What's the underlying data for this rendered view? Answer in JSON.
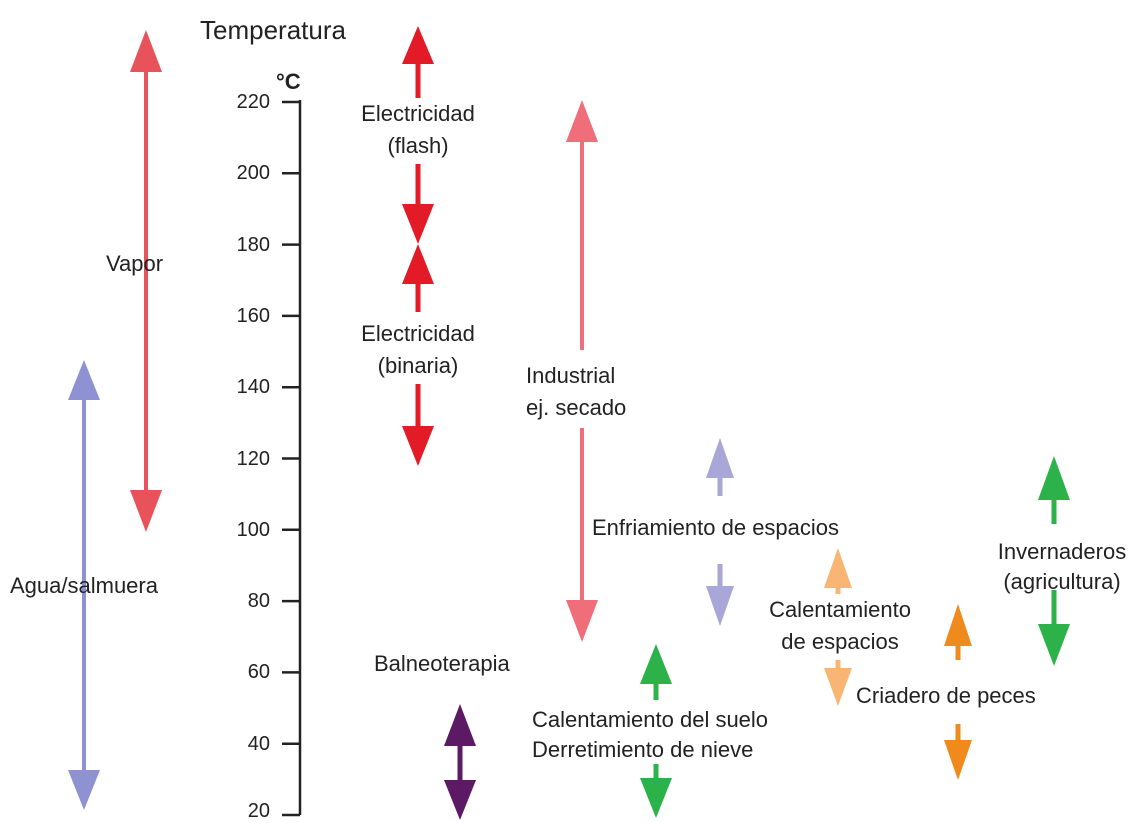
{
  "axis": {
    "title": "Temperatura",
    "unit": "°C",
    "range": [
      20,
      220
    ],
    "ticks": [
      {
        "value": 220,
        "label": "220"
      },
      {
        "value": 200,
        "label": "200"
      },
      {
        "value": 180,
        "label": "180"
      },
      {
        "value": 160,
        "label": "160"
      },
      {
        "value": 140,
        "label": "140"
      },
      {
        "value": 120,
        "label": "120"
      },
      {
        "value": 100,
        "label": "100"
      },
      {
        "value": 80,
        "label": "80"
      },
      {
        "value": 60,
        "label": "60"
      },
      {
        "value": 40,
        "label": "40"
      },
      {
        "value": 20,
        "label": "20"
      }
    ]
  },
  "resource_ranges": [
    {
      "name": "vapor-arrow",
      "min": 100,
      "max": 230,
      "color": "#e8525a"
    },
    {
      "name": "water-brine-arrow",
      "min": 20,
      "max": 140,
      "color": "#8f92d2"
    }
  ],
  "applications": [
    {
      "name": "electricity-flash-arrow",
      "min": 180,
      "max": 235,
      "color": "#e21b26"
    },
    {
      "name": "electricity-binary-arrow",
      "min": 120,
      "max": 180,
      "color": "#e21b26"
    },
    {
      "name": "industrial-arrow",
      "min": 70,
      "max": 217,
      "color": "#ef6e7a"
    },
    {
      "name": "space-cooling-arrow",
      "min": 75,
      "max": 120,
      "color": "#a9a6d8"
    },
    {
      "name": "space-heating-arrow",
      "min": 50,
      "max": 95,
      "color": "#f8b574"
    },
    {
      "name": "fish-farming-arrow",
      "min": 30,
      "max": 78,
      "color": "#f08a1c"
    },
    {
      "name": "greenhouse-arrow",
      "min": 65,
      "max": 118,
      "color": "#2db24a"
    },
    {
      "name": "soil-heating-arrow",
      "min": 20,
      "max": 65,
      "color": "#2db24a"
    },
    {
      "name": "balneotherapy-arrow",
      "min": 20,
      "max": 50,
      "color": "#5b1a63"
    }
  ],
  "labels": {
    "vapor": "Vapor",
    "water_brine": "Agua/salmuera",
    "elec_flash_1": "Electricidad",
    "elec_flash_2": "(flash)",
    "elec_binary_1": "Electricidad",
    "elec_binary_2": "(binaria)",
    "industrial_1": "Industrial",
    "industrial_2": "ej. secado",
    "space_cooling": "Enfriamiento de espacios",
    "space_heating_1": "Calentamiento",
    "space_heating_2": "de espacios",
    "greenhouse_1": "Invernaderos",
    "greenhouse_2": "(agricultura)",
    "fish_farming": "Criadero de peces",
    "balneotherapy": "Balneoterapia",
    "soil_heating_1": "Calentamiento del suelo",
    "soil_heating_2": "Derretimiento de nieve"
  }
}
